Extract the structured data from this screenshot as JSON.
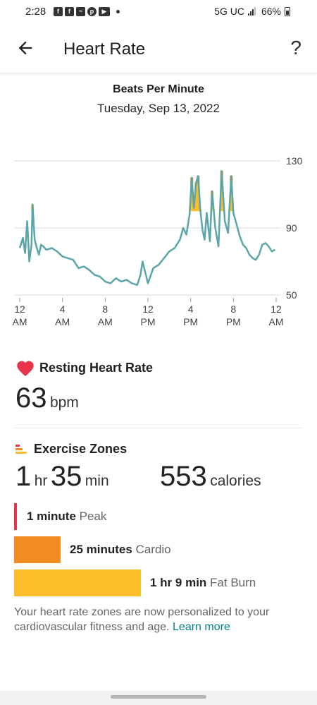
{
  "status": {
    "time": "2:28",
    "network": "5G UC",
    "battery": "66%"
  },
  "appbar": {
    "title": "Heart Rate",
    "help": "?"
  },
  "chart_header": {
    "title": "Beats Per Minute",
    "date": "Tuesday, Sep 13, 2022"
  },
  "chart_data": {
    "type": "line",
    "ylim": [
      50,
      130
    ],
    "yticks": [
      "130",
      "90",
      "50"
    ],
    "xticks": [
      {
        "top": "12",
        "bottom": "AM"
      },
      {
        "top": "4",
        "bottom": "AM"
      },
      {
        "top": "8",
        "bottom": "AM"
      },
      {
        "top": "12",
        "bottom": "PM"
      },
      {
        "top": "4",
        "bottom": "PM"
      },
      {
        "top": "8",
        "bottom": "PM"
      },
      {
        "top": "12",
        "bottom": "AM"
      }
    ],
    "x_hours": [
      0,
      0.3,
      0.5,
      0.7,
      0.9,
      1.1,
      1.2,
      1.4,
      1.6,
      1.8,
      2,
      2.2,
      2.5,
      3,
      3.5,
      4,
      4.5,
      5,
      5.5,
      6,
      6.5,
      7,
      7.5,
      8,
      8.5,
      9,
      9.5,
      10,
      10.5,
      11,
      11.3,
      11.5,
      12,
      12.5,
      13,
      13.5,
      14,
      14.5,
      15,
      15.3,
      15.6,
      15.9,
      16.1,
      16.3,
      16.5,
      16.7,
      16.9,
      17.1,
      17.3,
      17.5,
      17.8,
      18,
      18.3,
      18.6,
      18.9,
      19.2,
      19.5,
      19.8,
      20,
      20.3,
      20.6,
      20.9,
      21.2,
      21.5,
      21.8,
      22.1,
      22.4,
      22.7,
      23,
      23.3,
      23.6,
      23.9
    ],
    "y_bpm": [
      78,
      84,
      75,
      94,
      70,
      80,
      104,
      83,
      78,
      74,
      80,
      79,
      77,
      78,
      76,
      73,
      72,
      71,
      66,
      67,
      65,
      62,
      61,
      58,
      57,
      60,
      58,
      59,
      57,
      56,
      62,
      70,
      57,
      66,
      68,
      72,
      76,
      78,
      83,
      90,
      86,
      98,
      120,
      102,
      117,
      121,
      101,
      89,
      83,
      99,
      82,
      112,
      90,
      79,
      124,
      94,
      87,
      121,
      99,
      92,
      85,
      80,
      78,
      74,
      72,
      71,
      74,
      80,
      81,
      79,
      76,
      77
    ],
    "colors": {
      "line": "#5aa6a8",
      "fatburn": "#fbbd2a",
      "cardio": "#f28c23",
      "peak": "#e8334a",
      "grid": "#d8d8d8"
    }
  },
  "resting": {
    "label": "Resting Heart Rate",
    "value": "63",
    "unit": "bpm",
    "icon": "heart-icon",
    "color": "#e8334a"
  },
  "zones": {
    "label": "Exercise Zones",
    "icon": "zones-icon",
    "duration_hr_value": "1",
    "duration_hr_unit": "hr",
    "duration_min_value": "35",
    "duration_min_unit": "min",
    "calories_value": "553",
    "calories_unit": "calories",
    "rows": [
      {
        "duration": "1 minute",
        "name": "Peak",
        "color": "#e8334a"
      },
      {
        "duration": "25 minutes",
        "name": "Cardio",
        "color": "#f28c23"
      },
      {
        "duration": "1 hr 9 min",
        "name": "Fat Burn",
        "color": "#fbbd2a"
      }
    ]
  },
  "note": {
    "text": "Your heart rate zones are now personalized to your cardiovascular fitness and age.",
    "link": "Learn more"
  }
}
